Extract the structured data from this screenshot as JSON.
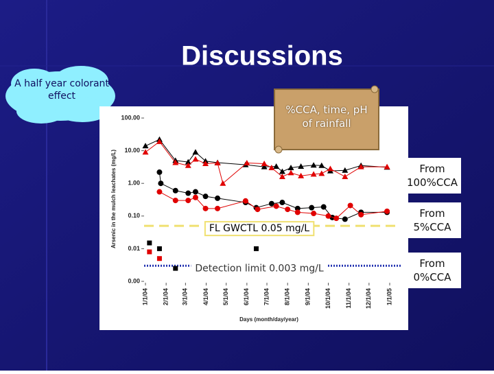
{
  "slide": {
    "title": "Discussions",
    "cloud_note": "A half year colorant effect",
    "scroll_note": "%CCA, time, pH of rainfall",
    "side_labels": [
      "From 100%CCA",
      "From 5%CCA",
      "From 0%CCA"
    ]
  },
  "chart_data": {
    "type": "line",
    "y_label": "Arsenic in the mulch leachates (mg/L)",
    "x_label": "Days (month/day/year)",
    "log_y": true,
    "ylim": [
      0.001,
      100
    ],
    "yticks": [
      {
        "value": 100,
        "label": "100.00"
      },
      {
        "value": 10,
        "label": "10.00"
      },
      {
        "value": 1,
        "label": "1.00"
      },
      {
        "value": 0.1,
        "label": "0.10"
      },
      {
        "value": 0.01,
        "label": "0.01"
      },
      {
        "value": 0.001,
        "label": "0.00"
      }
    ],
    "xlim": [
      "2004-01-01",
      "2005-01-01"
    ],
    "xticks": [
      {
        "value": "2004-01-01",
        "label": "1/1/04"
      },
      {
        "value": "2004-02-01",
        "label": "2/1/04"
      },
      {
        "value": "2004-03-01",
        "label": "3/1/04"
      },
      {
        "value": "2004-04-01",
        "label": "4/1/04"
      },
      {
        "value": "2004-05-01",
        "label": "5/1/04"
      },
      {
        "value": "2004-06-01",
        "label": "6/1/04"
      },
      {
        "value": "2004-07-01",
        "label": "7/1/04"
      },
      {
        "value": "2004-08-01",
        "label": "8/1/04"
      },
      {
        "value": "2004-09-01",
        "label": "9/1/04"
      },
      {
        "value": "2004-10-01",
        "label": "10/1/04"
      },
      {
        "value": "2004-11-01",
        "label": "11/1/04"
      },
      {
        "value": "2004-12-01",
        "label": "12/1/04"
      },
      {
        "value": "2005-01-01",
        "label": "1/1/05"
      }
    ],
    "series": [
      {
        "color": "#000000",
        "marker": "triangle",
        "lines": true,
        "x": [
          "2004-01-01",
          "2004-01-22",
          "2004-02-15",
          "2004-03-05",
          "2004-03-16",
          "2004-03-31",
          "2004-04-18",
          "2004-05-30",
          "2004-06-27",
          "2004-07-15",
          "2004-07-24",
          "2004-08-06",
          "2004-08-21",
          "2004-09-09",
          "2004-09-21",
          "2004-10-04",
          "2004-10-26",
          "2004-11-19",
          "2004-12-28"
        ],
        "values": [
          14,
          22,
          5,
          4.5,
          9,
          4.8,
          4.3,
          3.7,
          3.2,
          3.3,
          2.3,
          3,
          3.3,
          3.6,
          3.5,
          2.4,
          2.5,
          3.5,
          3.1
        ]
      },
      {
        "color": "#e00000",
        "marker": "triangle",
        "lines": true,
        "x": [
          "2004-01-01",
          "2004-01-22",
          "2004-02-15",
          "2004-03-05",
          "2004-03-16",
          "2004-03-31",
          "2004-04-18",
          "2004-04-26",
          "2004-06-01",
          "2004-06-27",
          "2004-07-08",
          "2004-07-24",
          "2004-08-06",
          "2004-08-21",
          "2004-09-09",
          "2004-09-21",
          "2004-10-04",
          "2004-10-26",
          "2004-11-19",
          "2004-12-28"
        ],
        "values": [
          9,
          19,
          4.3,
          3.5,
          5.5,
          4,
          4.2,
          1.0,
          4.2,
          4,
          3,
          1.6,
          2.1,
          1.7,
          1.9,
          2,
          2.8,
          1.6,
          3.2,
          3.2
        ]
      },
      {
        "color": "#000000",
        "marker": "circle",
        "lines": true,
        "x": [
          "2004-01-22",
          "2004-01-24",
          "2004-02-15",
          "2004-03-05",
          "2004-03-16",
          "2004-03-31",
          "2004-04-18",
          "2004-05-30",
          "2004-06-15",
          "2004-07-08",
          "2004-07-24",
          "2004-08-16",
          "2004-09-06",
          "2004-09-24",
          "2004-10-07",
          "2004-10-26",
          "2004-11-19",
          "2004-12-28"
        ],
        "values": [
          2.2,
          1.0,
          0.6,
          0.5,
          0.55,
          0.4,
          0.35,
          0.26,
          0.18,
          0.24,
          0.26,
          0.17,
          0.18,
          0.19,
          0.09,
          0.08,
          0.13,
          0.13
        ]
      },
      {
        "color": "#e00000",
        "marker": "circle",
        "lines": true,
        "x": [
          "2004-01-22",
          "2004-02-15",
          "2004-03-05",
          "2004-03-16",
          "2004-03-31",
          "2004-04-18",
          "2004-05-30",
          "2004-06-17",
          "2004-07-15",
          "2004-08-01",
          "2004-08-16",
          "2004-09-09",
          "2004-10-01",
          "2004-10-13",
          "2004-11-03",
          "2004-11-19",
          "2004-12-28"
        ],
        "values": [
          0.55,
          0.3,
          0.3,
          0.37,
          0.17,
          0.17,
          0.29,
          0.16,
          0.2,
          0.16,
          0.13,
          0.12,
          0.1,
          0.085,
          0.21,
          0.11,
          0.14
        ]
      },
      {
        "color": "#000000",
        "marker": "square",
        "lines": false,
        "x": [
          "2004-01-07",
          "2004-01-22",
          "2004-02-15",
          "2004-06-15"
        ],
        "values": [
          0.015,
          0.01,
          0.0025,
          0.01
        ]
      },
      {
        "color": "#e00000",
        "marker": "square",
        "lines": false,
        "x": [
          "2004-01-07",
          "2004-01-22"
        ],
        "values": [
          0.008,
          0.005
        ]
      }
    ],
    "reference_lines": [
      {
        "value": 0.05,
        "label": "FL GWCTL 0.05 mg/L",
        "color": "#f0e070",
        "style": "dashed"
      },
      {
        "value": 0.003,
        "label": "Detection limit 0.003 mg/L",
        "color": "#2030b0",
        "style": "dotted"
      }
    ]
  }
}
